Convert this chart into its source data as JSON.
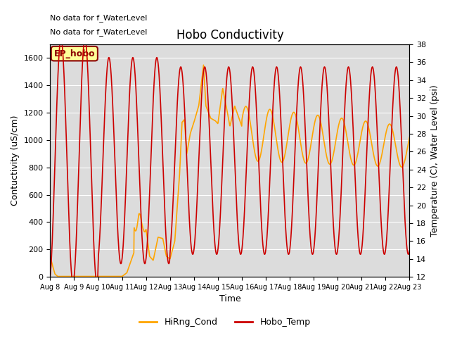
{
  "title": "Hobo Conductivity",
  "xlabel": "Time",
  "ylabel_left": "Contuctivity (uS/cm)",
  "ylabel_right": "Temperature (C), Water Level (psi)",
  "text_line1": "No data for f_WaterLevel",
  "text_line2": "No data for f_WaterLevel",
  "ep_hobo_label": "EP_hobo",
  "ylim_left": [
    0,
    1700
  ],
  "ylim_right": [
    12,
    38
  ],
  "yticks_left": [
    0,
    200,
    400,
    600,
    800,
    1000,
    1200,
    1400,
    1600
  ],
  "yticks_right": [
    12,
    14,
    16,
    18,
    20,
    22,
    24,
    26,
    28,
    30,
    32,
    34,
    36,
    38
  ],
  "xtick_labels": [
    "Aug 8",
    "Aug 9",
    "Aug 10",
    "Aug 11",
    "Aug 12",
    "Aug 13",
    "Aug 14",
    "Aug 15",
    "Aug 16",
    "Aug 17",
    "Aug 18",
    "Aug 19",
    "Aug 20",
    "Aug 21",
    "Aug 22",
    "Aug 23"
  ],
  "background_color": "#dcdcdc",
  "fig_color": "#ffffff",
  "cond_color": "#FFA500",
  "temp_color": "#CC0000",
  "cond_lw": 1.2,
  "temp_lw": 1.2,
  "grid_color": "#ffffff",
  "legend_cond": "HiRng_Cond",
  "legend_temp": "Hobo_Temp",
  "title_fontsize": 12,
  "label_fontsize": 9,
  "tick_fontsize": 8,
  "xtick_fontsize": 7
}
